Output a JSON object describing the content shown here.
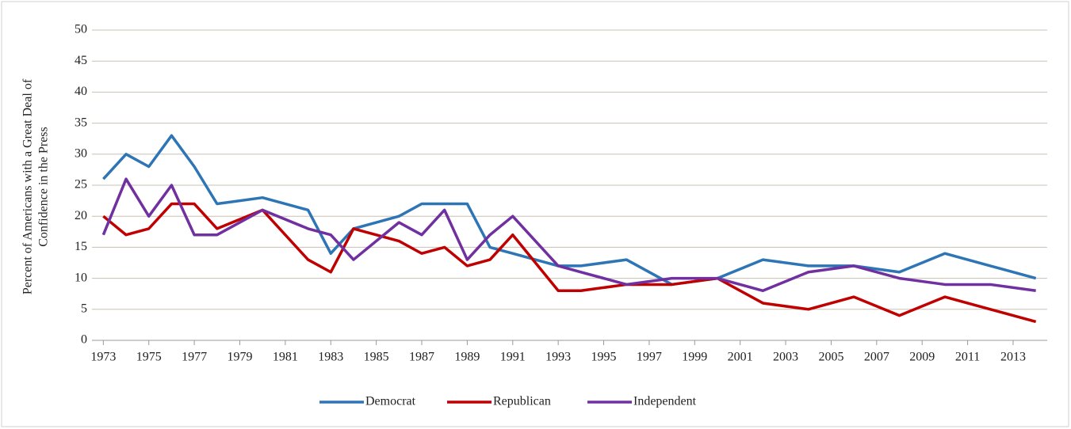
{
  "chart_data": {
    "type": "line",
    "ylabel": [
      "Percent of Americans with  a Great Deal of",
      "Confidence in the Press"
    ],
    "x": [
      1973,
      1974,
      1975,
      1976,
      1977,
      1978,
      1980,
      1982,
      1983,
      1984,
      1986,
      1987,
      1988,
      1989,
      1990,
      1991,
      1993,
      1994,
      1996,
      1998,
      2000,
      2002,
      2004,
      2006,
      2008,
      2010,
      2012,
      2014
    ],
    "series": [
      {
        "name": "Democrat",
        "color": "#2e75b6",
        "values": [
          26,
          30,
          28,
          33,
          28,
          22,
          23,
          21,
          14,
          18,
          20,
          22,
          22,
          22,
          15,
          14,
          12,
          12,
          13,
          9,
          10,
          13,
          12,
          12,
          11,
          14,
          12,
          10
        ]
      },
      {
        "name": "Republican",
        "color": "#c00000",
        "values": [
          20,
          17,
          18,
          22,
          22,
          18,
          21,
          13,
          11,
          18,
          16,
          14,
          15,
          12,
          13,
          17,
          8,
          8,
          9,
          9,
          10,
          6,
          5,
          7,
          4,
          7,
          5,
          3
        ]
      },
      {
        "name": "Independent",
        "color": "#7030a0",
        "values": [
          17,
          26,
          20,
          25,
          17,
          17,
          21,
          18,
          17,
          13,
          19,
          17,
          21,
          13,
          17,
          20,
          12,
          11,
          9,
          10,
          10,
          8,
          11,
          12,
          10,
          9,
          9,
          8
        ]
      }
    ],
    "xlim": [
      1972.5,
      2014.5
    ],
    "xticks": [
      1973,
      1975,
      1977,
      1979,
      1981,
      1983,
      1985,
      1987,
      1989,
      1991,
      1993,
      1995,
      1997,
      1999,
      2001,
      2003,
      2005,
      2007,
      2009,
      2011,
      2013
    ],
    "ylim": [
      0,
      50
    ],
    "yticks": [
      0,
      5,
      10,
      15,
      20,
      25,
      30,
      35,
      40,
      45,
      50
    ],
    "grid": true,
    "legend": "bottom"
  }
}
